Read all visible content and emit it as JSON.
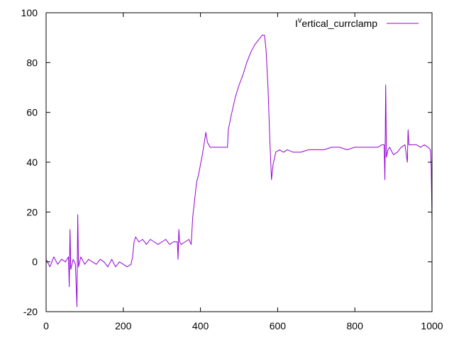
{
  "chart_data": {
    "type": "line",
    "title": "",
    "xlabel": "",
    "ylabel": "",
    "xlim": [
      0,
      1000
    ],
    "ylim": [
      -20,
      100
    ],
    "x_ticks": [
      0,
      200,
      400,
      600,
      800,
      1000
    ],
    "y_ticks": [
      -20,
      0,
      20,
      40,
      60,
      80,
      100
    ],
    "grid": false,
    "legend": {
      "placement": "top-right",
      "entries": [
        {
          "name_prefix": "I",
          "name_superscript": "v",
          "name_rest": "ertical_currclamp"
        }
      ]
    },
    "series": [
      {
        "name": "Iᵛertical_currclamp",
        "color": "#9400d3",
        "points": [
          [
            0,
            1
          ],
          [
            10,
            -2
          ],
          [
            20,
            2
          ],
          [
            30,
            -1
          ],
          [
            40,
            1
          ],
          [
            50,
            0
          ],
          [
            58,
            2
          ],
          [
            60,
            -10
          ],
          [
            62,
            13
          ],
          [
            64,
            -3
          ],
          [
            70,
            1
          ],
          [
            76,
            -1
          ],
          [
            80,
            -18
          ],
          [
            82,
            19
          ],
          [
            84,
            -2
          ],
          [
            90,
            2
          ],
          [
            100,
            -1
          ],
          [
            110,
            1
          ],
          [
            120,
            0
          ],
          [
            130,
            -1
          ],
          [
            140,
            1
          ],
          [
            150,
            0
          ],
          [
            160,
            -2
          ],
          [
            170,
            1
          ],
          [
            180,
            -2
          ],
          [
            190,
            0
          ],
          [
            200,
            -1
          ],
          [
            210,
            -2
          ],
          [
            220,
            -1
          ],
          [
            224,
            2
          ],
          [
            228,
            8
          ],
          [
            232,
            10
          ],
          [
            240,
            8
          ],
          [
            250,
            9
          ],
          [
            260,
            7
          ],
          [
            270,
            9
          ],
          [
            280,
            8
          ],
          [
            290,
            7
          ],
          [
            300,
            8
          ],
          [
            310,
            9
          ],
          [
            320,
            7
          ],
          [
            330,
            8
          ],
          [
            340,
            8
          ],
          [
            342,
            1
          ],
          [
            344,
            13
          ],
          [
            346,
            8
          ],
          [
            350,
            7
          ],
          [
            360,
            8
          ],
          [
            370,
            9
          ],
          [
            376,
            7
          ],
          [
            380,
            18
          ],
          [
            385,
            25
          ],
          [
            390,
            32
          ],
          [
            395,
            35
          ],
          [
            400,
            39
          ],
          [
            405,
            43
          ],
          [
            410,
            48
          ],
          [
            414,
            52
          ],
          [
            418,
            48
          ],
          [
            425,
            46
          ],
          [
            435,
            46
          ],
          [
            445,
            46
          ],
          [
            455,
            46
          ],
          [
            465,
            46
          ],
          [
            470,
            46
          ],
          [
            472,
            53
          ],
          [
            480,
            59
          ],
          [
            490,
            66
          ],
          [
            500,
            71
          ],
          [
            510,
            75
          ],
          [
            520,
            80
          ],
          [
            530,
            84
          ],
          [
            540,
            87
          ],
          [
            550,
            89
          ],
          [
            560,
            91
          ],
          [
            566,
            91
          ],
          [
            570,
            85
          ],
          [
            575,
            70
          ],
          [
            580,
            48
          ],
          [
            584,
            33
          ],
          [
            588,
            39
          ],
          [
            595,
            44
          ],
          [
            605,
            45
          ],
          [
            615,
            44
          ],
          [
            625,
            45
          ],
          [
            640,
            44
          ],
          [
            660,
            44
          ],
          [
            680,
            45
          ],
          [
            700,
            45
          ],
          [
            720,
            45
          ],
          [
            740,
            46
          ],
          [
            760,
            46
          ],
          [
            780,
            45
          ],
          [
            800,
            46
          ],
          [
            820,
            46
          ],
          [
            840,
            46
          ],
          [
            860,
            46
          ],
          [
            870,
            47
          ],
          [
            876,
            47
          ],
          [
            878,
            33
          ],
          [
            880,
            71
          ],
          [
            882,
            42
          ],
          [
            886,
            45
          ],
          [
            890,
            46
          ],
          [
            900,
            43
          ],
          [
            910,
            44
          ],
          [
            920,
            46
          ],
          [
            930,
            47
          ],
          [
            936,
            40
          ],
          [
            938,
            53
          ],
          [
            940,
            47
          ],
          [
            950,
            47
          ],
          [
            960,
            47
          ],
          [
            970,
            46
          ],
          [
            980,
            47
          ],
          [
            990,
            46
          ],
          [
            996,
            45
          ],
          [
            998,
            38
          ],
          [
            1000,
            16
          ]
        ]
      }
    ]
  }
}
